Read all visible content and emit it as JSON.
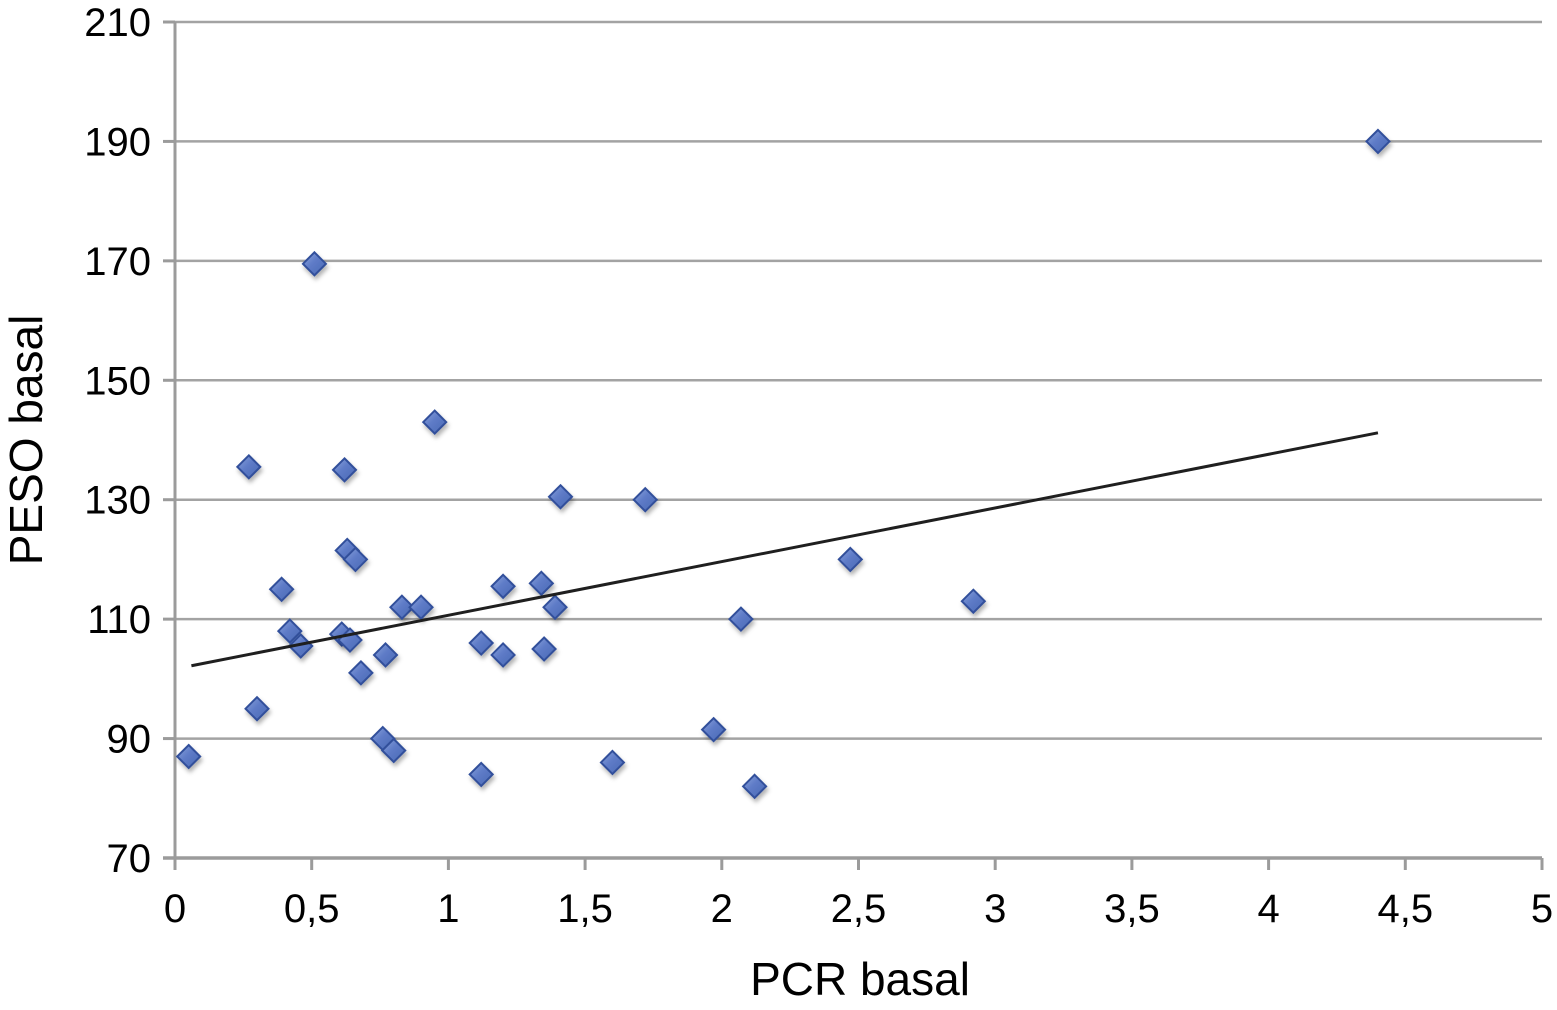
{
  "figure": {
    "background": "#ffffff",
    "title": ""
  },
  "chart_data": {
    "type": "scatter",
    "title": "",
    "xlabel": "PCR basal",
    "ylabel": "PESO basal",
    "xlim": [
      0,
      5
    ],
    "ylim": [
      70,
      210
    ],
    "grid": "horizontal",
    "legend": "none",
    "decimal_separator": ",",
    "x_ticks": [
      {
        "v": 0,
        "label": "0"
      },
      {
        "v": 0.5,
        "label": "0,5"
      },
      {
        "v": 1,
        "label": "1"
      },
      {
        "v": 1.5,
        "label": "1,5"
      },
      {
        "v": 2,
        "label": "2"
      },
      {
        "v": 2.5,
        "label": "2,5"
      },
      {
        "v": 3,
        "label": "3"
      },
      {
        "v": 3.5,
        "label": "3,5"
      },
      {
        "v": 4,
        "label": "4"
      },
      {
        "v": 4.5,
        "label": "4,5"
      },
      {
        "v": 5,
        "label": "5"
      }
    ],
    "y_ticks": [
      {
        "v": 70,
        "label": "70"
      },
      {
        "v": 90,
        "label": "90"
      },
      {
        "v": 110,
        "label": "110"
      },
      {
        "v": 130,
        "label": "130"
      },
      {
        "v": 150,
        "label": "150"
      },
      {
        "v": 170,
        "label": "170"
      },
      {
        "v": 190,
        "label": "190"
      },
      {
        "v": 210,
        "label": "210"
      }
    ],
    "points": [
      [
        0.05,
        87
      ],
      [
        0.27,
        135.5
      ],
      [
        0.3,
        95
      ],
      [
        0.39,
        115
      ],
      [
        0.42,
        108
      ],
      [
        0.46,
        105.5
      ],
      [
        0.51,
        169.5
      ],
      [
        0.61,
        107.5
      ],
      [
        0.62,
        135
      ],
      [
        0.63,
        121.5
      ],
      [
        0.64,
        106.5
      ],
      [
        0.66,
        120
      ],
      [
        0.68,
        101
      ],
      [
        0.76,
        90
      ],
      [
        0.77,
        104
      ],
      [
        0.8,
        88
      ],
      [
        0.83,
        112
      ],
      [
        0.9,
        112
      ],
      [
        0.95,
        143
      ],
      [
        1.12,
        106
      ],
      [
        1.12,
        84
      ],
      [
        1.2,
        115.5
      ],
      [
        1.2,
        104
      ],
      [
        1.34,
        116
      ],
      [
        1.35,
        105
      ],
      [
        1.39,
        112
      ],
      [
        1.41,
        130.5
      ],
      [
        1.6,
        86
      ],
      [
        1.72,
        130
      ],
      [
        1.97,
        91.5
      ],
      [
        2.07,
        110
      ],
      [
        2.12,
        82
      ],
      [
        2.47,
        120
      ],
      [
        2.92,
        113
      ],
      [
        4.4,
        190
      ]
    ],
    "trendline": {
      "x1": 0.06,
      "y1": 102.2,
      "x2": 4.4,
      "y2": 141.2
    },
    "colors": {
      "marker_fill": "#5e7bc7",
      "marker_fill_light": "#8ea6dc",
      "marker_fill_dark": "#4a69b4",
      "marker_stroke": "#31509b",
      "gridline": "#a3a3a3",
      "axis": "#9b9b9b",
      "trendline": "#1f1f1f",
      "text": "#000000"
    }
  }
}
